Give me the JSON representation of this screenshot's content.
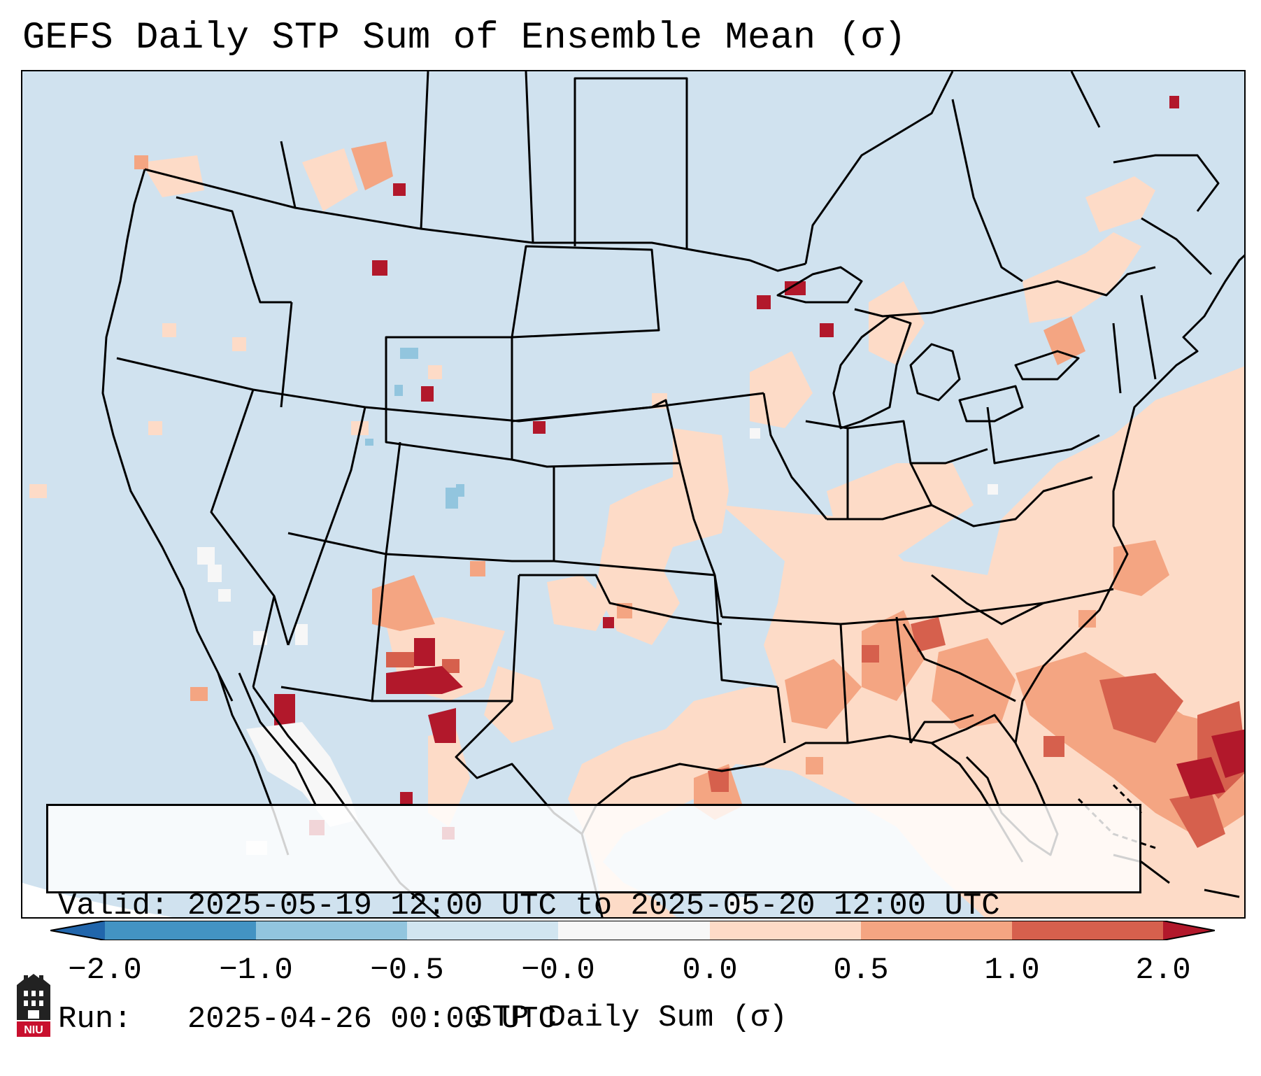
{
  "title": "GEFS Daily STP Sum of Ensemble Mean (σ)",
  "info": {
    "valid_label": "Valid:",
    "valid_value": "2025-05-19 12:00 UTC to 2025-05-20 12:00 UTC",
    "run_label": "Run:",
    "run_value": "2025-04-26 00:00 UTC"
  },
  "colorbar": {
    "label": "STP Daily Sum (σ)",
    "ticks": [
      "−2.0",
      "−1.0",
      "−0.5",
      "−0.0",
      "0.0",
      "0.5",
      "1.0",
      "2.0"
    ],
    "colors": {
      "below_min": "#2166ac",
      "n2_n1": "#4393c3",
      "n1_n05": "#92c5de",
      "n05_0": "#d1e5f0",
      "zero": "#f7f7f7",
      "p0_05": "#fddbc7",
      "p05_1": "#f4a582",
      "p1_2": "#d6604d",
      "above_max": "#b2182b"
    }
  },
  "logo": {
    "text": "NIU"
  }
}
